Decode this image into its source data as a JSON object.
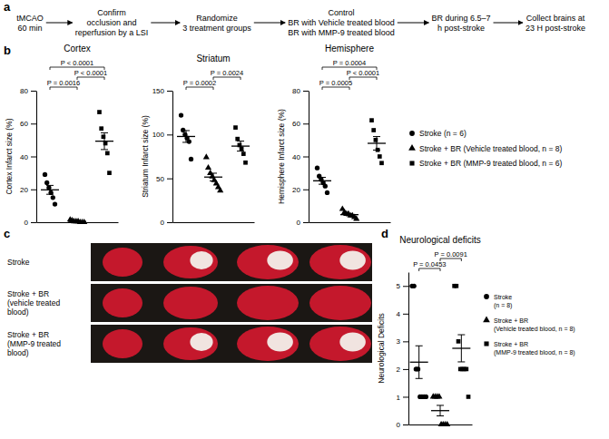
{
  "panel_labels": [
    "a",
    "b",
    "c",
    "d"
  ],
  "diagram": {
    "steps": [
      {
        "lines": [
          "tMCAO",
          "60 min"
        ]
      },
      {
        "lines": [
          "Confirm",
          "occlusion and",
          "reperfusion by a LSI"
        ]
      },
      {
        "lines": [
          "Randomize",
          "3 treatment groups"
        ]
      },
      {
        "lines": [
          "Control",
          "BR with Vehicle treated blood",
          "BR with MMP-9 treated blood"
        ]
      },
      {
        "lines": [
          "BR during 6.5–7",
          "h post-stroke"
        ]
      },
      {
        "lines": [
          "Collect brains at",
          "23 H post-stroke"
        ]
      }
    ]
  },
  "photo": {
    "rows": [
      {
        "lines": [
          "Stroke"
        ]
      },
      {
        "lines": [
          "Stroke + BR",
          "(vehicle treated",
          "blood)"
        ]
      },
      {
        "lines": [
          "Stroke + BR",
          "(MMP-9 treated",
          "blood)"
        ]
      }
    ]
  },
  "chart_data": [
    {
      "type": "scatter",
      "title": "Cortex",
      "y_label": "Cortex Infarct size (%)",
      "ylim": [
        0,
        80
      ],
      "yticks": [
        0,
        20,
        40,
        60,
        80
      ],
      "tick_labels": "y",
      "legend": "right",
      "series": [
        {
          "name": "Stroke (n = 6)",
          "marker": "circle",
          "color": "#000000",
          "values": [
            29,
            24,
            21,
            18,
            15,
            11
          ],
          "mean": 19.7,
          "error": 2.7
        },
        {
          "name": "Stroke + BR (Vehicle treated blood, n = 8)",
          "marker": "triangle",
          "color": "#000000",
          "values": [
            1.5,
            1,
            0.5,
            0.5,
            0.5,
            0,
            0,
            0
          ],
          "mean": 0.5,
          "error": 0.2
        },
        {
          "name": "Stroke + BR (MMP-9 treated blood, n = 6)",
          "marker": "square",
          "color": "#000000",
          "values": [
            67,
            57,
            52,
            48,
            42,
            30
          ],
          "mean": 49.3,
          "error": 5.1
        }
      ],
      "annotations": [
        {
          "text": "P = 0.0016",
          "between": [
            0,
            1
          ]
        },
        {
          "text": "P < 0.0001",
          "between": [
            1,
            2
          ]
        },
        {
          "text": "P < 0.0001",
          "between": [
            0,
            2
          ]
        }
      ]
    },
    {
      "type": "scatter",
      "title": "Striatum",
      "y_label": "Striatum Infarct size (%)",
      "ylim": [
        0,
        150
      ],
      "yticks": [
        0,
        50,
        100,
        150
      ],
      "tick_labels": "y",
      "series": [
        {
          "marker": "circle",
          "color": "#000000",
          "values": [
            122,
            105,
            100,
            96,
            92,
            72
          ],
          "mean": 97.8,
          "error": 6.7
        },
        {
          "marker": "triangle",
          "color": "#000000",
          "values": [
            74,
            62,
            56,
            52,
            48,
            44,
            40,
            36
          ],
          "mean": 51.5,
          "error": 4.4
        },
        {
          "marker": "square",
          "color": "#000000",
          "values": [
            108,
            95,
            88,
            84,
            78,
            68
          ],
          "mean": 86.8,
          "error": 5.7
        }
      ],
      "annotations": [
        {
          "text": "P = 0.0002",
          "between": [
            0,
            1
          ]
        },
        {
          "text": "P = 0.0024",
          "between": [
            1,
            2
          ]
        }
      ]
    },
    {
      "type": "scatter",
      "title": "Hemisphere",
      "y_label": "Hemisphere Infarct size (%)",
      "ylim": [
        0,
        80
      ],
      "yticks": [
        0,
        20,
        40,
        60,
        80
      ],
      "tick_labels": "y",
      "series": [
        {
          "marker": "circle",
          "color": "#000000",
          "values": [
            33,
            28,
            26,
            24,
            22,
            18
          ],
          "mean": 25.2,
          "error": 2.1
        },
        {
          "marker": "triangle",
          "color": "#000000",
          "values": [
            8,
            6,
            5,
            5,
            4,
            4,
            3,
            2
          ],
          "mean": 4.6,
          "error": 0.7
        },
        {
          "marker": "square",
          "color": "#000000",
          "values": [
            62,
            56,
            50,
            44,
            40,
            36
          ],
          "mean": 48,
          "error": 4.1
        }
      ],
      "annotations": [
        {
          "text": "P = 0.0005",
          "between": [
            0,
            1
          ]
        },
        {
          "text": "P < 0.0001",
          "between": [
            1,
            2
          ]
        },
        {
          "text": "P = 0.0004",
          "between": [
            0,
            2
          ]
        }
      ]
    },
    {
      "type": "scatter",
      "title": "Neurological deficits",
      "y_label": "Neurological Deficits",
      "ylim": [
        0,
        5.5
      ],
      "yticks": [
        0,
        1,
        2,
        3,
        4,
        5
      ],
      "tick_labels": "y",
      "legend": "right",
      "series": [
        {
          "name": "Stroke (n = 8)",
          "marker": "circle",
          "color": "#000000",
          "values": [
            5,
            5,
            2,
            2,
            1,
            1,
            1,
            1
          ],
          "mean": 2.25,
          "error": 0.59
        },
        {
          "name": "Stroke + BR (Vehicle treated blood, n = 8)",
          "marker": "triangle",
          "color": "#000000",
          "values": [
            1,
            1,
            1,
            1,
            0,
            0,
            0,
            0
          ],
          "mean": 0.5,
          "error": 0.19
        },
        {
          "name": "Stroke + BR (MMP-9 treated blood, n = 8)",
          "marker": "square",
          "color": "#000000",
          "values": [
            5,
            5,
            3,
            2,
            2,
            2,
            2,
            1
          ],
          "mean": 2.75,
          "error": 0.49
        }
      ],
      "annotations": [
        {
          "text": "P = 0.0453",
          "between": [
            0,
            1
          ]
        },
        {
          "text": "P = 0.0091",
          "between": [
            1,
            2
          ]
        }
      ]
    }
  ]
}
